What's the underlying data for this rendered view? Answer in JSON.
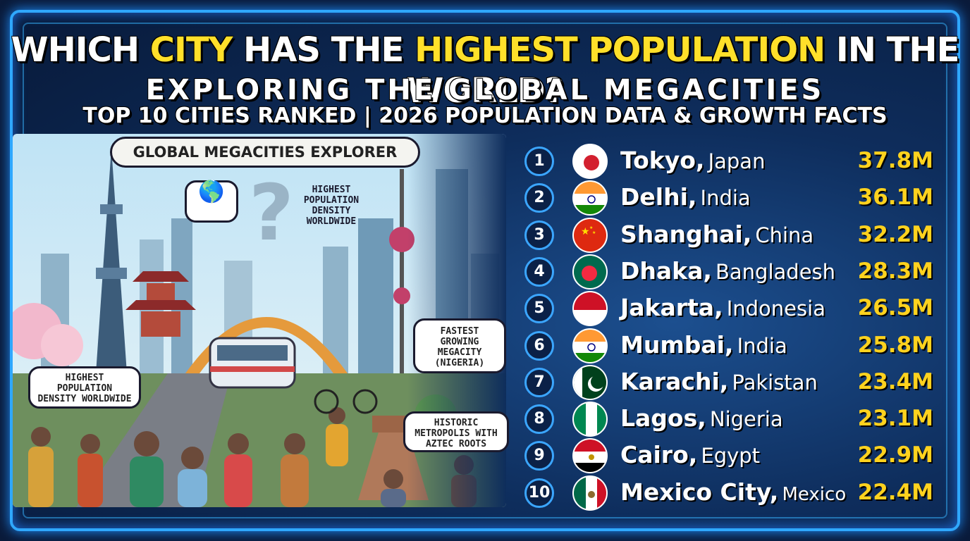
{
  "title": {
    "line1_part1": "WHICH ",
    "line1_highlight1": "CITY",
    "line1_part2": " HAS THE ",
    "line1_highlight2": "HIGHEST POPULATION",
    "line1_part3": " IN THE WORLD?",
    "line2": "EXPLORING THE GLOBAL MEGACITIES",
    "line3": "TOP 10 CITIES RANKED | 2026 POPULATION DATA & GROWTH FACTS"
  },
  "illustration": {
    "badge": "GLOBAL MEGACITIES EXPLORER",
    "callout_top": "HIGHEST POPULATION DENSITY WORLDWIDE",
    "callout_fastest": "FASTEST GROWING MEGACITY (NIGERIA)",
    "callout_density": "HIGHEST POPULATION DENSITY WORLDWIDE",
    "callout_historic": "HISTORIC METROPOLIS WITH AZTEC ROOTS"
  },
  "colors": {
    "accent": "#ffe02a",
    "frame": "#2fa8ff",
    "population": "#ffd21e"
  },
  "rankings": [
    {
      "rank": "1",
      "city": "Tokyo,",
      "country": "Japan",
      "population": "37.8M",
      "flag": "japan-flag-icon"
    },
    {
      "rank": "2",
      "city": "Delhi,",
      "country": "India",
      "population": "36.1M",
      "flag": "india-flag-icon"
    },
    {
      "rank": "3",
      "city": "Shanghai,",
      "country": "China",
      "population": "32.2M",
      "flag": "china-flag-icon"
    },
    {
      "rank": "4",
      "city": "Dhaka,",
      "country": "Bangladesh",
      "population": "28.3M",
      "flag": "bangladesh-flag-icon"
    },
    {
      "rank": "5",
      "city": "Jakarta,",
      "country": "Indonesia",
      "population": "26.5M",
      "flag": "indonesia-flag-icon"
    },
    {
      "rank": "6",
      "city": "Mumbai,",
      "country": "India",
      "population": "25.8M",
      "flag": "india-flag-icon"
    },
    {
      "rank": "7",
      "city": "Karachi,",
      "country": "Pakistan",
      "population": "23.4M",
      "flag": "pakistan-flag-icon"
    },
    {
      "rank": "8",
      "city": "Lagos,",
      "country": "Nigeria",
      "population": "23.1M",
      "flag": "nigeria-flag-icon"
    },
    {
      "rank": "9",
      "city": "Cairo,",
      "country": "Egypt",
      "population": "22.9M",
      "flag": "egypt-flag-icon"
    },
    {
      "rank": "10",
      "city": "Mexico City,",
      "country": "Mexico",
      "population": "22.4M",
      "flag": "mexico-flag-icon"
    }
  ]
}
